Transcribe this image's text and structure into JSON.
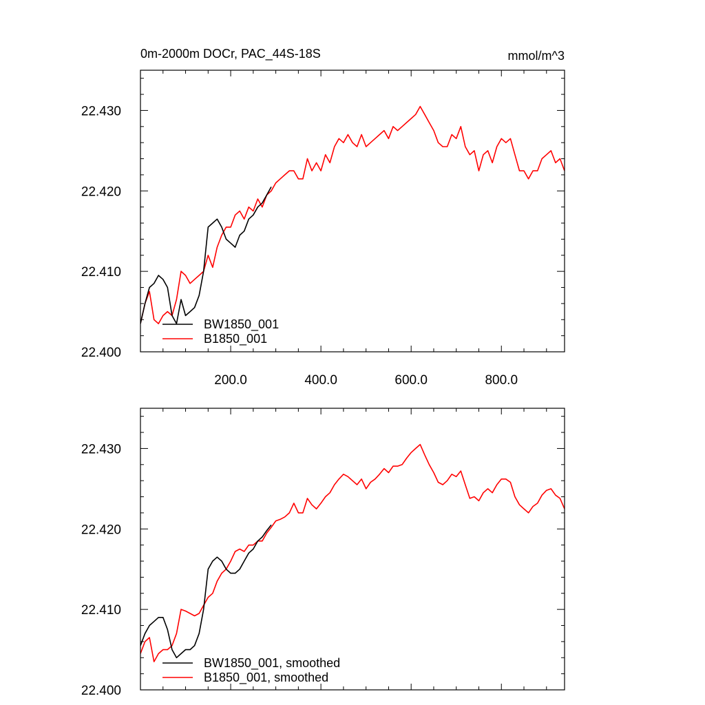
{
  "title_left": "0m-2000m DOCr, PAC_44S-18S",
  "title_right": "mmol/m^3",
  "colors": {
    "BW1850_001": "#000000",
    "B1850_001": "#ff0000"
  },
  "chart_data": [
    {
      "type": "line",
      "title": "0m-2000m DOCr, PAC_44S-18S",
      "units": "mmol/m^3",
      "xlim": [
        0,
        940
      ],
      "ylim": [
        22.4,
        22.435
      ],
      "x_ticks": [
        200,
        400,
        600,
        800
      ],
      "x_tick_labels": [
        "200.0",
        "400.0",
        "600.0",
        "800.0"
      ],
      "y_ticks": [
        22.4,
        22.41,
        22.42,
        22.43
      ],
      "y_tick_labels": [
        "22.400",
        "22.410",
        "22.420",
        "22.430"
      ],
      "legend": {
        "position": "bottom-left",
        "entries": [
          "BW1850_001",
          "B1850_001"
        ]
      },
      "series": [
        {
          "name": "BW1850_001",
          "color": "#000000",
          "x": [
            0,
            10,
            20,
            30,
            40,
            50,
            60,
            70,
            80,
            90,
            100,
            110,
            120,
            130,
            140,
            150,
            160,
            170,
            180,
            190,
            200,
            210,
            220,
            230,
            240,
            250,
            260,
            270,
            280,
            290
          ],
          "y": [
            22.4035,
            22.406,
            22.408,
            22.4085,
            22.4095,
            22.409,
            22.408,
            22.4045,
            22.4035,
            22.4065,
            22.4045,
            22.405,
            22.4055,
            22.407,
            22.41,
            22.4155,
            22.416,
            22.4165,
            22.4155,
            22.414,
            22.4135,
            22.413,
            22.4145,
            22.415,
            22.4165,
            22.417,
            22.418,
            22.4185,
            22.4195,
            22.4205
          ]
        },
        {
          "name": "B1850_001",
          "color": "#ff0000",
          "x": [
            0,
            10,
            20,
            30,
            40,
            50,
            60,
            70,
            80,
            90,
            100,
            110,
            120,
            130,
            140,
            150,
            160,
            170,
            180,
            190,
            200,
            210,
            220,
            230,
            240,
            250,
            260,
            270,
            280,
            290,
            300,
            310,
            320,
            330,
            340,
            350,
            360,
            370,
            380,
            390,
            400,
            410,
            420,
            430,
            440,
            450,
            460,
            470,
            480,
            490,
            500,
            510,
            520,
            530,
            540,
            550,
            560,
            570,
            580,
            590,
            600,
            610,
            620,
            630,
            640,
            650,
            660,
            670,
            680,
            690,
            700,
            710,
            720,
            730,
            740,
            750,
            760,
            770,
            780,
            790,
            800,
            810,
            820,
            830,
            840,
            850,
            860,
            870,
            880,
            890,
            900,
            910,
            920,
            930,
            940
          ],
          "y": [
            22.4035,
            22.406,
            22.4075,
            22.404,
            22.4035,
            22.4045,
            22.405,
            22.4045,
            22.4065,
            22.41,
            22.4095,
            22.4085,
            22.409,
            22.4095,
            22.41,
            22.412,
            22.4105,
            22.413,
            22.4145,
            22.4155,
            22.4155,
            22.417,
            22.4175,
            22.4165,
            22.418,
            22.4175,
            22.419,
            22.418,
            22.4195,
            22.42,
            22.421,
            22.4215,
            22.422,
            22.4225,
            22.4225,
            22.4215,
            22.4215,
            22.424,
            22.4225,
            22.4235,
            22.4225,
            22.4245,
            22.4235,
            22.4255,
            22.4265,
            22.426,
            22.427,
            22.426,
            22.4255,
            22.427,
            22.4255,
            22.426,
            22.4265,
            22.427,
            22.4275,
            22.4265,
            22.428,
            22.4275,
            22.428,
            22.4285,
            22.429,
            22.4295,
            22.4305,
            22.4295,
            22.4285,
            22.4275,
            22.426,
            22.4255,
            22.4255,
            22.427,
            22.4265,
            22.428,
            22.4255,
            22.4245,
            22.425,
            22.4225,
            22.4245,
            22.425,
            22.4235,
            22.4255,
            22.4265,
            22.426,
            22.4265,
            22.4245,
            22.4225,
            22.4225,
            22.4215,
            22.4225,
            22.4225,
            22.424,
            22.4245,
            22.425,
            22.4235,
            22.424,
            22.4225
          ]
        }
      ]
    },
    {
      "type": "line",
      "xlim": [
        0,
        940
      ],
      "ylim": [
        22.4,
        22.435
      ],
      "x_ticks": [
        200,
        400,
        600,
        800
      ],
      "y_ticks": [
        22.4,
        22.41,
        22.42,
        22.43
      ],
      "y_tick_labels": [
        "22.400",
        "22.410",
        "22.420",
        "22.430"
      ],
      "legend": {
        "position": "bottom-left",
        "entries": [
          "BW1850_001, smoothed",
          "B1850_001, smoothed"
        ]
      },
      "series": [
        {
          "name": "BW1850_001, smoothed",
          "color": "#000000",
          "x": [
            0,
            10,
            20,
            30,
            40,
            50,
            60,
            70,
            80,
            90,
            100,
            110,
            120,
            130,
            140,
            150,
            160,
            170,
            180,
            190,
            200,
            210,
            220,
            230,
            240,
            250,
            260,
            270,
            280,
            290
          ],
          "y": [
            22.4055,
            22.407,
            22.408,
            22.4085,
            22.409,
            22.409,
            22.4075,
            22.405,
            22.404,
            22.4045,
            22.405,
            22.405,
            22.4055,
            22.407,
            22.41,
            22.415,
            22.416,
            22.4165,
            22.416,
            22.415,
            22.4145,
            22.4145,
            22.415,
            22.416,
            22.417,
            22.4175,
            22.4185,
            22.419,
            22.4198,
            22.4205
          ]
        },
        {
          "name": "B1850_001, smoothed",
          "color": "#ff0000",
          "x": [
            0,
            10,
            20,
            30,
            40,
            50,
            60,
            70,
            80,
            90,
            100,
            110,
            120,
            130,
            140,
            150,
            160,
            170,
            180,
            190,
            200,
            210,
            220,
            230,
            240,
            250,
            260,
            270,
            280,
            290,
            300,
            310,
            320,
            330,
            340,
            350,
            360,
            370,
            380,
            390,
            400,
            410,
            420,
            430,
            440,
            450,
            460,
            470,
            480,
            490,
            500,
            510,
            520,
            530,
            540,
            550,
            560,
            570,
            580,
            590,
            600,
            610,
            620,
            630,
            640,
            650,
            660,
            670,
            680,
            690,
            700,
            710,
            720,
            730,
            740,
            750,
            760,
            770,
            780,
            790,
            800,
            810,
            820,
            830,
            840,
            850,
            860,
            870,
            880,
            890,
            900,
            910,
            920,
            930,
            940
          ],
          "y": [
            22.4045,
            22.406,
            22.4065,
            22.4035,
            22.4045,
            22.405,
            22.405,
            22.4055,
            22.407,
            22.41,
            22.4098,
            22.4095,
            22.4092,
            22.4095,
            22.4105,
            22.4115,
            22.412,
            22.4135,
            22.4145,
            22.415,
            22.416,
            22.4172,
            22.4175,
            22.4172,
            22.418,
            22.418,
            22.4185,
            22.4185,
            22.4195,
            22.4202,
            22.421,
            22.4212,
            22.4215,
            22.422,
            22.4232,
            22.422,
            22.422,
            22.4238,
            22.423,
            22.4225,
            22.4232,
            22.424,
            22.4245,
            22.4255,
            22.4262,
            22.4268,
            22.4265,
            22.426,
            22.4255,
            22.4262,
            22.425,
            22.4258,
            22.4262,
            22.4268,
            22.4275,
            22.427,
            22.4278,
            22.4278,
            22.428,
            22.4288,
            22.4295,
            22.43,
            22.4305,
            22.4292,
            22.428,
            22.427,
            22.4258,
            22.4255,
            22.426,
            22.4268,
            22.4265,
            22.4272,
            22.4255,
            22.4238,
            22.424,
            22.4235,
            22.4245,
            22.425,
            22.4245,
            22.4255,
            22.4262,
            22.4262,
            22.4258,
            22.424,
            22.423,
            22.4225,
            22.422,
            22.4228,
            22.4232,
            22.4242,
            22.4248,
            22.425,
            22.4242,
            22.4238,
            22.4225
          ]
        }
      ]
    }
  ]
}
